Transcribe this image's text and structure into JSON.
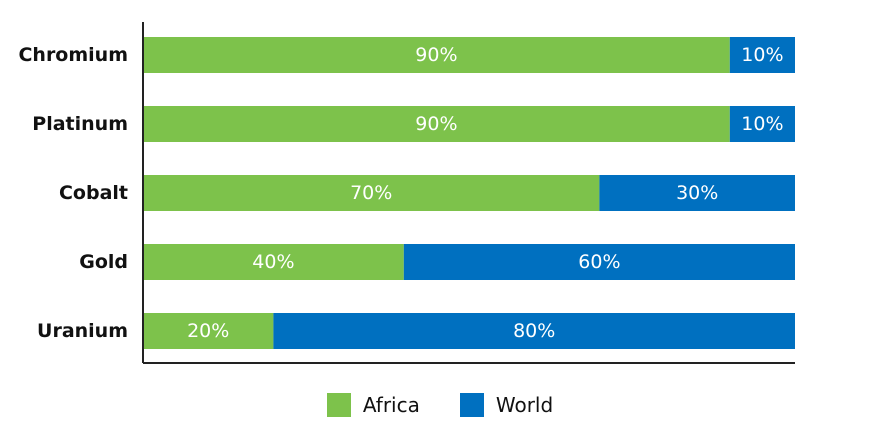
{
  "chart_data": {
    "type": "bar",
    "orientation": "horizontal",
    "stacked": true,
    "categories": [
      "Chromium",
      "Platinum",
      "Cobalt",
      "Gold",
      "Uranium"
    ],
    "series": [
      {
        "name": "Africa",
        "values": [
          90,
          90,
          70,
          40,
          20
        ],
        "labels": [
          "90%",
          "90%",
          "70%",
          "40%",
          "20%"
        ],
        "color": "#7dc24b"
      },
      {
        "name": "World",
        "values": [
          10,
          10,
          30,
          60,
          80
        ],
        "labels": [
          "10%",
          "10%",
          "30%",
          "60%",
          "80%"
        ],
        "color": "#0070c0"
      }
    ],
    "xlim": [
      0,
      100
    ],
    "grid": false,
    "legend_position": "bottom-center"
  }
}
